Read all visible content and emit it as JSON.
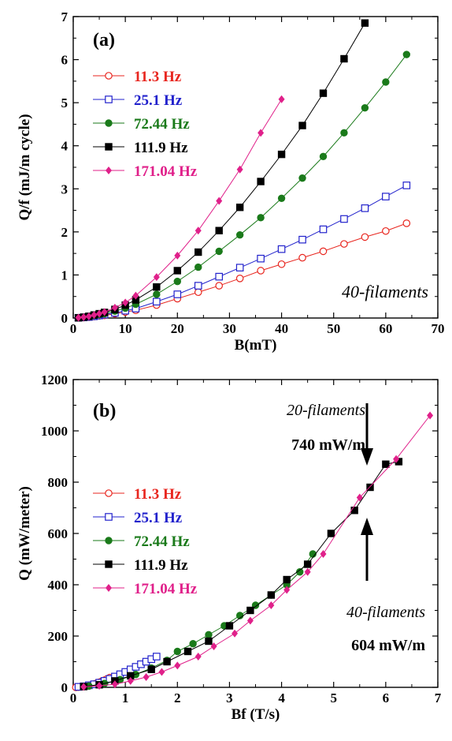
{
  "chart_data": [
    {
      "type": "scatter",
      "panel_label": "(a)",
      "xlabel": "B(mT)",
      "ylabel": "Q/f (mJ/m cycle)",
      "xlim": [
        0,
        70
      ],
      "ylim": [
        0,
        7
      ],
      "xticks": [
        "0",
        "10",
        "20",
        "30",
        "40",
        "50",
        "60",
        "70"
      ],
      "yticks": [
        "0",
        "1",
        "2",
        "3",
        "4",
        "5",
        "6",
        "7"
      ],
      "legend_position": "top-left",
      "annotations": [
        {
          "text": "40-filaments",
          "style": "italic"
        }
      ],
      "series": [
        {
          "name": "11.3 Hz",
          "color": "#e8261f",
          "marker": "open-circle",
          "x": [
            1,
            2,
            3,
            4,
            5,
            6,
            8,
            10,
            12,
            16,
            20,
            24,
            28,
            32,
            36,
            40,
            44,
            48,
            52,
            56,
            60,
            64
          ],
          "y": [
            0.005,
            0.01,
            0.02,
            0.035,
            0.05,
            0.06,
            0.1,
            0.14,
            0.18,
            0.3,
            0.45,
            0.6,
            0.75,
            0.92,
            1.1,
            1.25,
            1.4,
            1.55,
            1.72,
            1.88,
            2.02,
            2.2
          ]
        },
        {
          "name": "25.1 Hz",
          "color": "#2222cc",
          "marker": "open-square",
          "x": [
            1,
            2,
            3,
            4,
            5,
            6,
            8,
            10,
            12,
            16,
            20,
            24,
            28,
            32,
            36,
            40,
            44,
            48,
            52,
            56,
            60,
            64
          ],
          "y": [
            0.005,
            0.015,
            0.025,
            0.04,
            0.06,
            0.08,
            0.12,
            0.17,
            0.22,
            0.38,
            0.55,
            0.75,
            0.96,
            1.17,
            1.38,
            1.6,
            1.82,
            2.06,
            2.3,
            2.55,
            2.82,
            3.08
          ]
        },
        {
          "name": "72.44 Hz",
          "color": "#1a7a1a",
          "marker": "filled-circle",
          "x": [
            1,
            2,
            3,
            4,
            5,
            6,
            8,
            10,
            12,
            16,
            20,
            24,
            28,
            32,
            36,
            40,
            44,
            48,
            52,
            56,
            60,
            64
          ],
          "y": [
            0.005,
            0.02,
            0.04,
            0.06,
            0.08,
            0.1,
            0.16,
            0.23,
            0.32,
            0.55,
            0.85,
            1.18,
            1.55,
            1.93,
            2.33,
            2.78,
            3.25,
            3.75,
            4.3,
            4.88,
            5.48,
            6.12
          ]
        },
        {
          "name": "111.9 Hz",
          "color": "#000000",
          "marker": "filled-square",
          "x": [
            1,
            2,
            3,
            4,
            5,
            6,
            8,
            10,
            12,
            16,
            20,
            24,
            28,
            32,
            36,
            40,
            44,
            48,
            52,
            56
          ],
          "y": [
            0.005,
            0.02,
            0.04,
            0.07,
            0.1,
            0.13,
            0.2,
            0.3,
            0.42,
            0.72,
            1.1,
            1.53,
            2.03,
            2.57,
            3.17,
            3.8,
            4.47,
            5.22,
            6.02,
            6.85
          ]
        },
        {
          "name": "171.04 Hz",
          "color": "#e0208a",
          "marker": "filled-diamond",
          "x": [
            1,
            2,
            3,
            4,
            5,
            6,
            8,
            10,
            12,
            16,
            20,
            24,
            28,
            32,
            36,
            40
          ],
          "y": [
            0.01,
            0.02,
            0.04,
            0.07,
            0.1,
            0.14,
            0.24,
            0.36,
            0.52,
            0.95,
            1.45,
            2.03,
            2.72,
            3.45,
            4.3,
            5.08
          ]
        }
      ]
    },
    {
      "type": "scatter",
      "panel_label": "(b)",
      "xlabel": "Bf (T/s)",
      "ylabel": "Q (mW/meter)",
      "xlim": [
        0,
        7
      ],
      "ylim": [
        0,
        1200
      ],
      "xticks": [
        "0",
        "1",
        "2",
        "3",
        "4",
        "5",
        "6",
        "7"
      ],
      "yticks": [
        "0",
        "200",
        "400",
        "600",
        "800",
        "1000",
        "1200"
      ],
      "legend_position": "middle-left",
      "annotations": [
        {
          "text": "20-filaments",
          "style": "italic"
        },
        {
          "text": "740 mW/m",
          "style": "bold"
        },
        {
          "text": "40-filaments",
          "style": "italic"
        },
        {
          "text": "604 mW/m",
          "style": "bold"
        }
      ],
      "series": [
        {
          "name": "11.3 Hz",
          "color": "#e8261f",
          "marker": "open-circle",
          "x": [
            0.05,
            0.1,
            0.15,
            0.2,
            0.25,
            0.3,
            0.35,
            0.4,
            0.45,
            0.5,
            0.55,
            0.6,
            0.65,
            0.7
          ],
          "y": [
            0,
            1,
            2,
            3,
            5,
            8,
            10,
            13,
            16,
            20,
            24,
            28,
            33,
            38
          ]
        },
        {
          "name": "25.1 Hz",
          "color": "#2222cc",
          "marker": "open-square",
          "x": [
            0.1,
            0.2,
            0.3,
            0.4,
            0.5,
            0.6,
            0.7,
            0.8,
            0.9,
            1.0,
            1.1,
            1.2,
            1.3,
            1.4,
            1.5,
            1.6
          ],
          "y": [
            2,
            4,
            8,
            12,
            18,
            25,
            33,
            42,
            51,
            60,
            70,
            80,
            90,
            100,
            110,
            120
          ]
        },
        {
          "name": "72.44 Hz",
          "color": "#1a7a1a",
          "marker": "filled-circle",
          "x": [
            0.3,
            0.6,
            0.9,
            1.2,
            1.5,
            1.8,
            2.0,
            2.3,
            2.6,
            2.9,
            3.2,
            3.5,
            3.8,
            4.1,
            4.35,
            4.6
          ],
          "y": [
            5,
            15,
            30,
            50,
            75,
            105,
            140,
            170,
            205,
            240,
            280,
            320,
            360,
            400,
            450,
            520
          ]
        },
        {
          "name": "111.9 Hz",
          "color": "#000000",
          "marker": "filled-square",
          "x": [
            0.2,
            0.5,
            0.8,
            1.1,
            1.5,
            1.8,
            2.2,
            2.6,
            3.0,
            3.4,
            3.8,
            4.1,
            4.5,
            4.95,
            5.4,
            5.7,
            6.0,
            6.25
          ],
          "y": [
            3,
            10,
            25,
            45,
            70,
            100,
            140,
            180,
            240,
            300,
            360,
            420,
            480,
            600,
            690,
            780,
            870,
            880
          ]
        },
        {
          "name": "171.04 Hz",
          "color": "#e0208a",
          "marker": "filled-diamond",
          "x": [
            0.2,
            0.5,
            0.8,
            1.1,
            1.4,
            1.7,
            2.0,
            2.4,
            2.7,
            3.1,
            3.4,
            3.8,
            4.1,
            4.5,
            4.8,
            5.5,
            6.2,
            6.85
          ],
          "y": [
            2,
            6,
            12,
            25,
            40,
            60,
            85,
            120,
            160,
            210,
            260,
            320,
            380,
            450,
            520,
            740,
            890,
            1060
          ]
        }
      ]
    }
  ]
}
